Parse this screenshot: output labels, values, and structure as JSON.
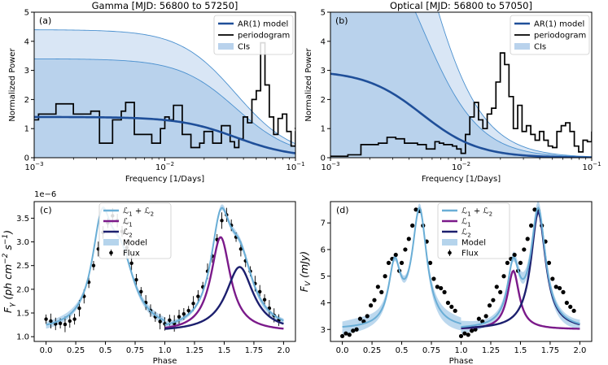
{
  "chart_data": [
    {
      "id": "a",
      "type": "line",
      "panel_label": "(a)",
      "title": "Gamma [MJD: 56800 to 57250]",
      "xlabel": "Frequency [1/Days]",
      "ylabel": "Normalized Power",
      "xscale": "log",
      "xlim": [
        0.001,
        0.1
      ],
      "ylim": [
        0,
        5
      ],
      "x_ticks": [
        {
          "v": 0.001,
          "base": "10",
          "exp": "−3"
        },
        {
          "v": 0.01,
          "base": "10",
          "exp": "−2"
        },
        {
          "v": 0.1,
          "base": "10",
          "exp": "−1"
        }
      ],
      "y_ticks": [
        0,
        1,
        2,
        3,
        4,
        5
      ],
      "ar1_model": {
        "level": 1.4,
        "knee_freq": 0.035
      },
      "ci": {
        "inner": 3.4,
        "outer": 4.4,
        "knee_freq": 0.035,
        "falloff": 2
      },
      "periodogram_bins_per_decade": 30,
      "periodogram": [
        1.3,
        1.5,
        1.5,
        1.5,
        1.5,
        1.85,
        1.85,
        1.85,
        1.85,
        1.5,
        1.5,
        1.5,
        1.5,
        1.6,
        1.6,
        0.5,
        0.5,
        0.5,
        1.3,
        1.3,
        1.6,
        1.9,
        1.9,
        0.8,
        0.8,
        0.8,
        0.8,
        0.5,
        0.5,
        1.0,
        1.4,
        1.3,
        1.8,
        1.8,
        0.8,
        0.8,
        0.35,
        0.35,
        0.5,
        0.9,
        0.9,
        0.5,
        0.5,
        1.1,
        1.1,
        0.55,
        0.35,
        0.65,
        1.4,
        1.2,
        2.0,
        2.3,
        3.95,
        2.5,
        1.4,
        0.8,
        1.35,
        1.5,
        0.9,
        0.4,
        0.9,
        1.0,
        0.3
      ],
      "legend": [
        "AR(1) model",
        "periodogram",
        "CIs"
      ]
    },
    {
      "id": "b",
      "type": "line",
      "panel_label": "(b)",
      "title": "Optical [MJD: 56800 to 57050]",
      "xlabel": "Frequency [1/Days]",
      "ylabel": "Normalized Power",
      "xscale": "log",
      "xlim": [
        0.001,
        0.1
      ],
      "ylim": [
        0,
        5
      ],
      "x_ticks": [
        {
          "v": 0.001,
          "base": "10",
          "exp": "−3"
        },
        {
          "v": 0.01,
          "base": "10",
          "exp": "−2"
        },
        {
          "v": 0.1,
          "base": "10",
          "exp": "−1"
        }
      ],
      "y_ticks": [
        0,
        1,
        2,
        3,
        4,
        5
      ],
      "ar1_model": {
        "level": 3.0,
        "knee_freq": 0.005
      },
      "ci": {
        "inner": 9,
        "outer": 14,
        "knee_freq": 0.005,
        "falloff": 2
      },
      "periodogram_bins_per_decade": 30,
      "periodogram": [
        0.05,
        0.05,
        0.05,
        0.05,
        0.1,
        0.1,
        0.1,
        0.45,
        0.45,
        0.45,
        0.45,
        0.5,
        0.5,
        0.7,
        0.7,
        0.65,
        0.65,
        0.5,
        0.5,
        0.5,
        0.45,
        0.45,
        0.3,
        0.3,
        0.55,
        0.5,
        0.45,
        0.45,
        0.4,
        0.3,
        0.15,
        0.8,
        1.4,
        1.9,
        1.3,
        1.0,
        1.5,
        1.7,
        2.6,
        3.6,
        3.2,
        2.1,
        1.0,
        1.8,
        0.9,
        1.1,
        0.8,
        0.6,
        0.9,
        0.6,
        0.4,
        0.35,
        0.9,
        1.1,
        1.2,
        0.9,
        0.4,
        0.2,
        0.6,
        0.55,
        0.9
      ],
      "legend": [
        "AR(1) model",
        "periodogram",
        "CIs"
      ]
    },
    {
      "id": "c",
      "type": "line",
      "panel_label": "(c)",
      "xlabel": "Phase",
      "ylabel": "Fγ (ph cm⁻² s⁻¹)",
      "ylabel_parts": {
        "main": "F",
        "sub": "γ",
        "body": " (ph cm",
        "sup1": "−2",
        "mid": " s",
        "sup2": "−1",
        "tail": ")"
      },
      "y_offset_label": "1e−6",
      "xlim": [
        -0.1,
        2.1
      ],
      "ylim": [
        0.9,
        3.85
      ],
      "x_ticks": [
        0.0,
        0.25,
        0.5,
        0.75,
        1.0,
        1.25,
        1.5,
        1.75,
        2.0
      ],
      "y_ticks": [
        1.0,
        1.5,
        2.0,
        2.5,
        3.0,
        3.5
      ],
      "model": {
        "baseline": 1.1,
        "L1": {
          "center": 1.47,
          "amplitude": 2.0,
          "width": 0.1
        },
        "L2": {
          "center": 1.63,
          "amplitude": 1.37,
          "width": 0.14
        }
      },
      "band_halfwidth": 0.06,
      "flux_phase_step": 0.04,
      "flux": [
        1.37,
        1.33,
        1.27,
        1.28,
        1.26,
        1.33,
        1.37,
        1.6,
        1.85,
        2.15,
        2.5,
        2.85,
        3.2,
        3.4,
        3.55,
        3.45,
        3.22,
        2.88,
        2.55,
        2.2,
        1.95,
        1.72,
        1.55,
        1.42,
        1.32,
        1.27,
        1.35,
        1.28,
        1.42,
        1.48,
        1.55,
        1.7,
        1.85,
        2.05,
        2.38,
        2.7,
        3.05,
        3.45,
        3.57,
        3.35,
        3.1,
        2.85,
        2.6,
        2.38,
        2.12,
        1.95,
        1.78,
        1.6,
        1.45,
        1.35
      ],
      "flux_error": 0.14,
      "legend": [
        {
          "main": "ℒ",
          "sub": "1",
          "plus": " + ",
          "main2": "ℒ",
          "sub2": "2"
        },
        {
          "main": "ℒ",
          "sub": "1"
        },
        {
          "main": "ℒ",
          "sub": "2"
        },
        {
          "text": "Model"
        },
        {
          "text": "Flux"
        }
      ]
    },
    {
      "id": "d",
      "type": "scatter",
      "panel_label": "(d)",
      "xlabel": "Phase",
      "ylabel": "Fv (mJy)",
      "ylabel_parts": {
        "main": "F",
        "sub": "V",
        "body": " (mJy)"
      },
      "xlim": [
        -0.1,
        2.1
      ],
      "ylim": [
        2.55,
        7.8
      ],
      "x_ticks": [
        0.0,
        0.25,
        0.5,
        0.75,
        1.0,
        1.25,
        1.5,
        1.75,
        2.0
      ],
      "y_ticks": [
        3,
        4,
        5,
        6,
        7
      ],
      "model": {
        "baseline": 3.0,
        "L1": {
          "center": 1.44,
          "amplitude": 2.2,
          "width": 0.06
        },
        "L2": {
          "center": 1.65,
          "amplitude": 4.4,
          "width": 0.075
        }
      },
      "band_halfwidth": 0.2,
      "flux": [
        [
          0.0,
          2.75
        ],
        [
          0.03,
          2.85
        ],
        [
          0.06,
          2.8
        ],
        [
          0.09,
          2.95
        ],
        [
          0.12,
          3.0
        ],
        [
          0.15,
          3.4
        ],
        [
          0.18,
          3.3
        ],
        [
          0.21,
          3.5
        ],
        [
          0.24,
          3.9
        ],
        [
          0.27,
          4.1
        ],
        [
          0.3,
          4.6
        ],
        [
          0.33,
          4.4
        ],
        [
          0.36,
          5.0
        ],
        [
          0.39,
          5.5
        ],
        [
          0.42,
          5.65
        ],
        [
          0.45,
          5.8
        ],
        [
          0.48,
          5.2
        ],
        [
          0.5,
          5.5
        ],
        [
          0.53,
          6.0
        ],
        [
          0.56,
          6.4
        ],
        [
          0.59,
          6.9
        ],
        [
          0.62,
          7.5
        ],
        [
          0.65,
          7.45
        ],
        [
          0.68,
          6.9
        ],
        [
          0.71,
          6.3
        ],
        [
          0.74,
          5.5
        ],
        [
          0.77,
          4.9
        ],
        [
          0.8,
          4.6
        ],
        [
          0.83,
          4.55
        ],
        [
          0.86,
          4.4
        ],
        [
          0.89,
          4.0
        ],
        [
          0.92,
          3.85
        ],
        [
          0.95,
          3.7
        ],
        [
          1.0,
          2.75
        ],
        [
          1.03,
          2.85
        ],
        [
          1.06,
          2.8
        ],
        [
          1.09,
          2.95
        ],
        [
          1.12,
          3.0
        ],
        [
          1.15,
          3.4
        ],
        [
          1.18,
          3.3
        ],
        [
          1.21,
          3.5
        ],
        [
          1.24,
          3.9
        ],
        [
          1.27,
          4.1
        ],
        [
          1.3,
          4.6
        ],
        [
          1.33,
          4.4
        ],
        [
          1.36,
          5.0
        ],
        [
          1.39,
          5.5
        ],
        [
          1.42,
          5.65
        ],
        [
          1.45,
          5.8
        ],
        [
          1.48,
          5.2
        ],
        [
          1.5,
          5.5
        ],
        [
          1.53,
          6.0
        ],
        [
          1.56,
          6.4
        ],
        [
          1.59,
          6.9
        ],
        [
          1.62,
          7.5
        ],
        [
          1.65,
          7.45
        ],
        [
          1.68,
          6.9
        ],
        [
          1.71,
          6.3
        ],
        [
          1.74,
          5.5
        ],
        [
          1.77,
          4.9
        ],
        [
          1.8,
          4.6
        ],
        [
          1.83,
          4.55
        ],
        [
          1.86,
          4.4
        ],
        [
          1.89,
          4.0
        ],
        [
          1.92,
          3.85
        ],
        [
          1.95,
          3.7
        ]
      ],
      "legend": [
        {
          "main": "ℒ",
          "sub": "1",
          "plus": " + ",
          "main2": "ℒ",
          "sub2": "2"
        },
        {
          "main": "ℒ",
          "sub": "1"
        },
        {
          "main": "ℒ",
          "sub": "2"
        },
        {
          "text": "Model"
        },
        {
          "text": "Flux"
        }
      ]
    }
  ],
  "colors": {
    "ar1": "#1f4f99",
    "ci_outer": "#d9e6f5",
    "ci_inner": "#b9d2ec",
    "ci_line": "#4a90cf",
    "periodogram": "#000000",
    "sum": "#6aaed6",
    "L1": "#7b1a8a",
    "L2": "#1c1f6e",
    "model_band": "#b5d4ec",
    "flux": "#000000"
  }
}
